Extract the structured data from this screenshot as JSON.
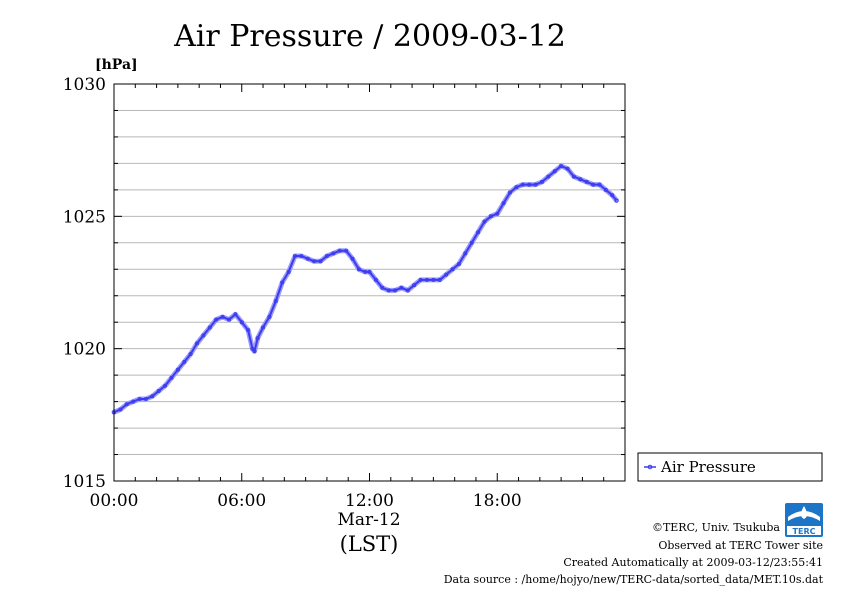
{
  "chart_data": {
    "type": "line",
    "title": "Air Pressure / 2009-03-12",
    "ylabel": "[hPa]",
    "xlabel_date": "Mar-12",
    "xlabel_zone": "(LST)",
    "ylim": [
      1015,
      1030
    ],
    "xlim_hours": [
      0,
      24
    ],
    "y_ticks": [
      "1015",
      "1020",
      "1025",
      "1030"
    ],
    "x_ticks": [
      "00:00",
      "06:00",
      "12:00",
      "18:00"
    ],
    "grid": true,
    "legend_position": "bottom-right outside",
    "series": [
      {
        "name": "Air Pressure",
        "color": "#3b3bf0",
        "x": [
          0,
          0.3,
          0.6,
          0.9,
          1.2,
          1.5,
          1.8,
          2.1,
          2.4,
          2.7,
          3.0,
          3.3,
          3.6,
          3.9,
          4.2,
          4.5,
          4.8,
          5.1,
          5.4,
          5.7,
          6.0,
          6.3,
          6.5,
          6.6,
          6.75,
          7.0,
          7.3,
          7.6,
          7.9,
          8.2,
          8.5,
          8.8,
          9.1,
          9.4,
          9.7,
          10.0,
          10.3,
          10.6,
          10.9,
          11.2,
          11.5,
          11.8,
          12.0,
          12.3,
          12.6,
          12.9,
          13.2,
          13.5,
          13.8,
          14.1,
          14.4,
          14.7,
          15.0,
          15.3,
          15.6,
          15.9,
          16.2,
          16.5,
          16.8,
          17.1,
          17.4,
          17.7,
          18.0,
          18.3,
          18.6,
          18.9,
          19.2,
          19.5,
          19.8,
          20.1,
          20.4,
          20.7,
          21.0,
          21.3,
          21.6,
          21.9,
          22.2,
          22.5,
          22.8,
          23.1,
          23.4,
          23.6
        ],
        "values": [
          1017.6,
          1017.7,
          1017.9,
          1018.0,
          1018.1,
          1018.1,
          1018.2,
          1018.4,
          1018.6,
          1018.9,
          1019.2,
          1019.5,
          1019.8,
          1020.2,
          1020.5,
          1020.8,
          1021.1,
          1021.2,
          1021.1,
          1021.3,
          1021.0,
          1020.7,
          1020.0,
          1019.9,
          1020.4,
          1020.8,
          1021.2,
          1021.8,
          1022.5,
          1022.9,
          1023.5,
          1023.5,
          1023.4,
          1023.3,
          1023.3,
          1023.5,
          1023.6,
          1023.7,
          1023.7,
          1023.4,
          1023.0,
          1022.9,
          1022.9,
          1022.6,
          1022.3,
          1022.2,
          1022.2,
          1022.3,
          1022.2,
          1022.4,
          1022.6,
          1022.6,
          1022.6,
          1022.6,
          1022.8,
          1023.0,
          1023.2,
          1023.6,
          1024.0,
          1024.4,
          1024.8,
          1025.0,
          1025.1,
          1025.5,
          1025.9,
          1026.1,
          1026.2,
          1026.2,
          1026.2,
          1026.3,
          1026.5,
          1026.7,
          1026.9,
          1026.8,
          1026.5,
          1026.4,
          1026.3,
          1026.2,
          1026.2,
          1026.0,
          1025.8,
          1025.6
        ]
      }
    ]
  },
  "legend": {
    "label": "Air Pressure"
  },
  "footer": {
    "copyright": "©TERC, Univ. Tsukuba",
    "observed": "Observed at TERC Tower site",
    "created": "Created Automatically at 2009-03-12/23:55:41",
    "source": "Data source : /home/hojyo/new/TERC-data/sorted_data/MET.10s.dat",
    "logo_text": "TERC"
  }
}
